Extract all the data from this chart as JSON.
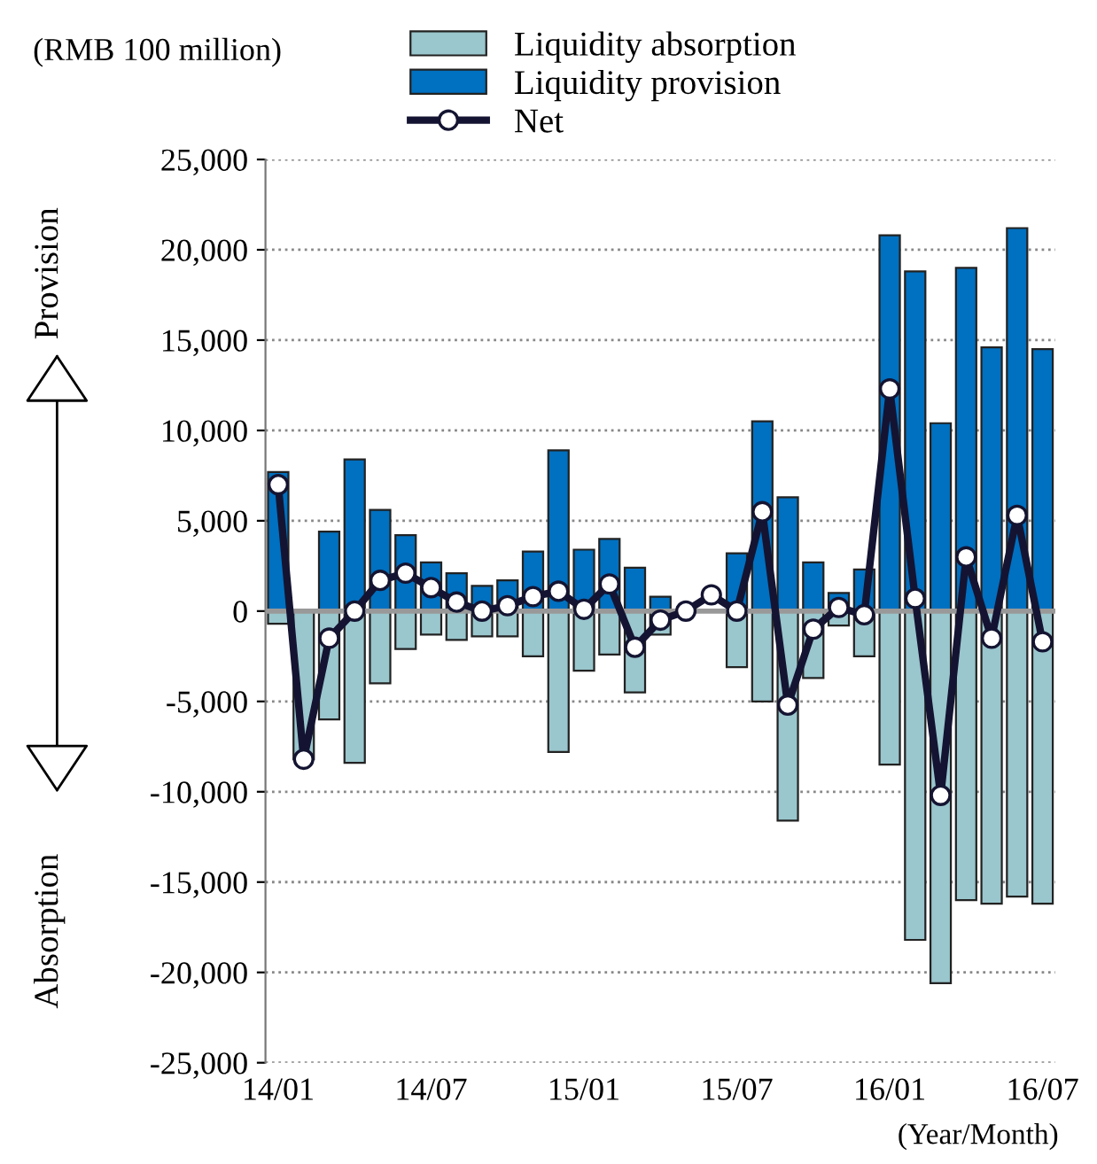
{
  "chart_data": {
    "type": "bar",
    "stacked": true,
    "ylabel": "(RMB 100 million)",
    "xlabel": "(Year/Month)",
    "annotations": [
      "Provision",
      "Absorption"
    ],
    "categories": [
      "14/01",
      null,
      null,
      null,
      null,
      null,
      "14/07",
      null,
      null,
      null,
      null,
      null,
      "15/01",
      null,
      null,
      null,
      null,
      null,
      "15/07",
      null,
      null,
      null,
      null,
      null,
      "16/01",
      null,
      null,
      null,
      null,
      null,
      "16/07"
    ],
    "series": [
      {
        "name": "Liquidity absorption",
        "color": "#9ac6cd",
        "values": [
          -700,
          -8200,
          -6000,
          -8400,
          -4000,
          -2100,
          -1300,
          -1600,
          -1400,
          -1400,
          -2500,
          -7800,
          -3300,
          -2400,
          -4500,
          -1300,
          null,
          null,
          -3100,
          -5000,
          -11600,
          -3700,
          -800,
          -2500,
          -8500,
          -18200,
          -20600,
          -16000,
          -16200,
          -15800,
          -16200
        ]
      },
      {
        "name": "Liquidity provision",
        "color": "#0070c0",
        "values": [
          7700,
          null,
          4400,
          8400,
          5600,
          4200,
          2700,
          2100,
          1400,
          1700,
          3300,
          8900,
          3400,
          4000,
          2400,
          800,
          null,
          null,
          3200,
          10500,
          6300,
          2700,
          1000,
          2300,
          20800,
          18800,
          10400,
          19000,
          14600,
          21200,
          14500
        ]
      },
      {
        "name": "Net",
        "type": "line",
        "color": "#141432",
        "marker": "circle",
        "values": [
          7000,
          -8200,
          -1500,
          0,
          1700,
          2100,
          1300,
          500,
          0,
          300,
          800,
          1100,
          100,
          1500,
          -2000,
          -500,
          0,
          900,
          0,
          5500,
          -5200,
          -1000,
          200,
          -200,
          12300,
          700,
          -10200,
          3000,
          -1500,
          5300,
          -1700
        ]
      }
    ],
    "ylim": [
      -25000,
      25000
    ],
    "yticks": [
      {
        "value": -25000,
        "label": "-25,000"
      },
      {
        "value": -20000,
        "label": "-20,000"
      },
      {
        "value": -15000,
        "label": "-15,000"
      },
      {
        "value": -10000,
        "label": "-10,000"
      },
      {
        "value": -5000,
        "label": "-5,000"
      },
      0,
      {
        "value": 5000,
        "label": "5,000"
      },
      {
        "value": 10000,
        "label": "10,000"
      },
      {
        "value": 15000,
        "label": "15,000"
      },
      {
        "value": 20000,
        "label": "20,000"
      },
      {
        "value": 25000,
        "label": "25,000"
      }
    ],
    "grid": "y",
    "legend": "top"
  }
}
